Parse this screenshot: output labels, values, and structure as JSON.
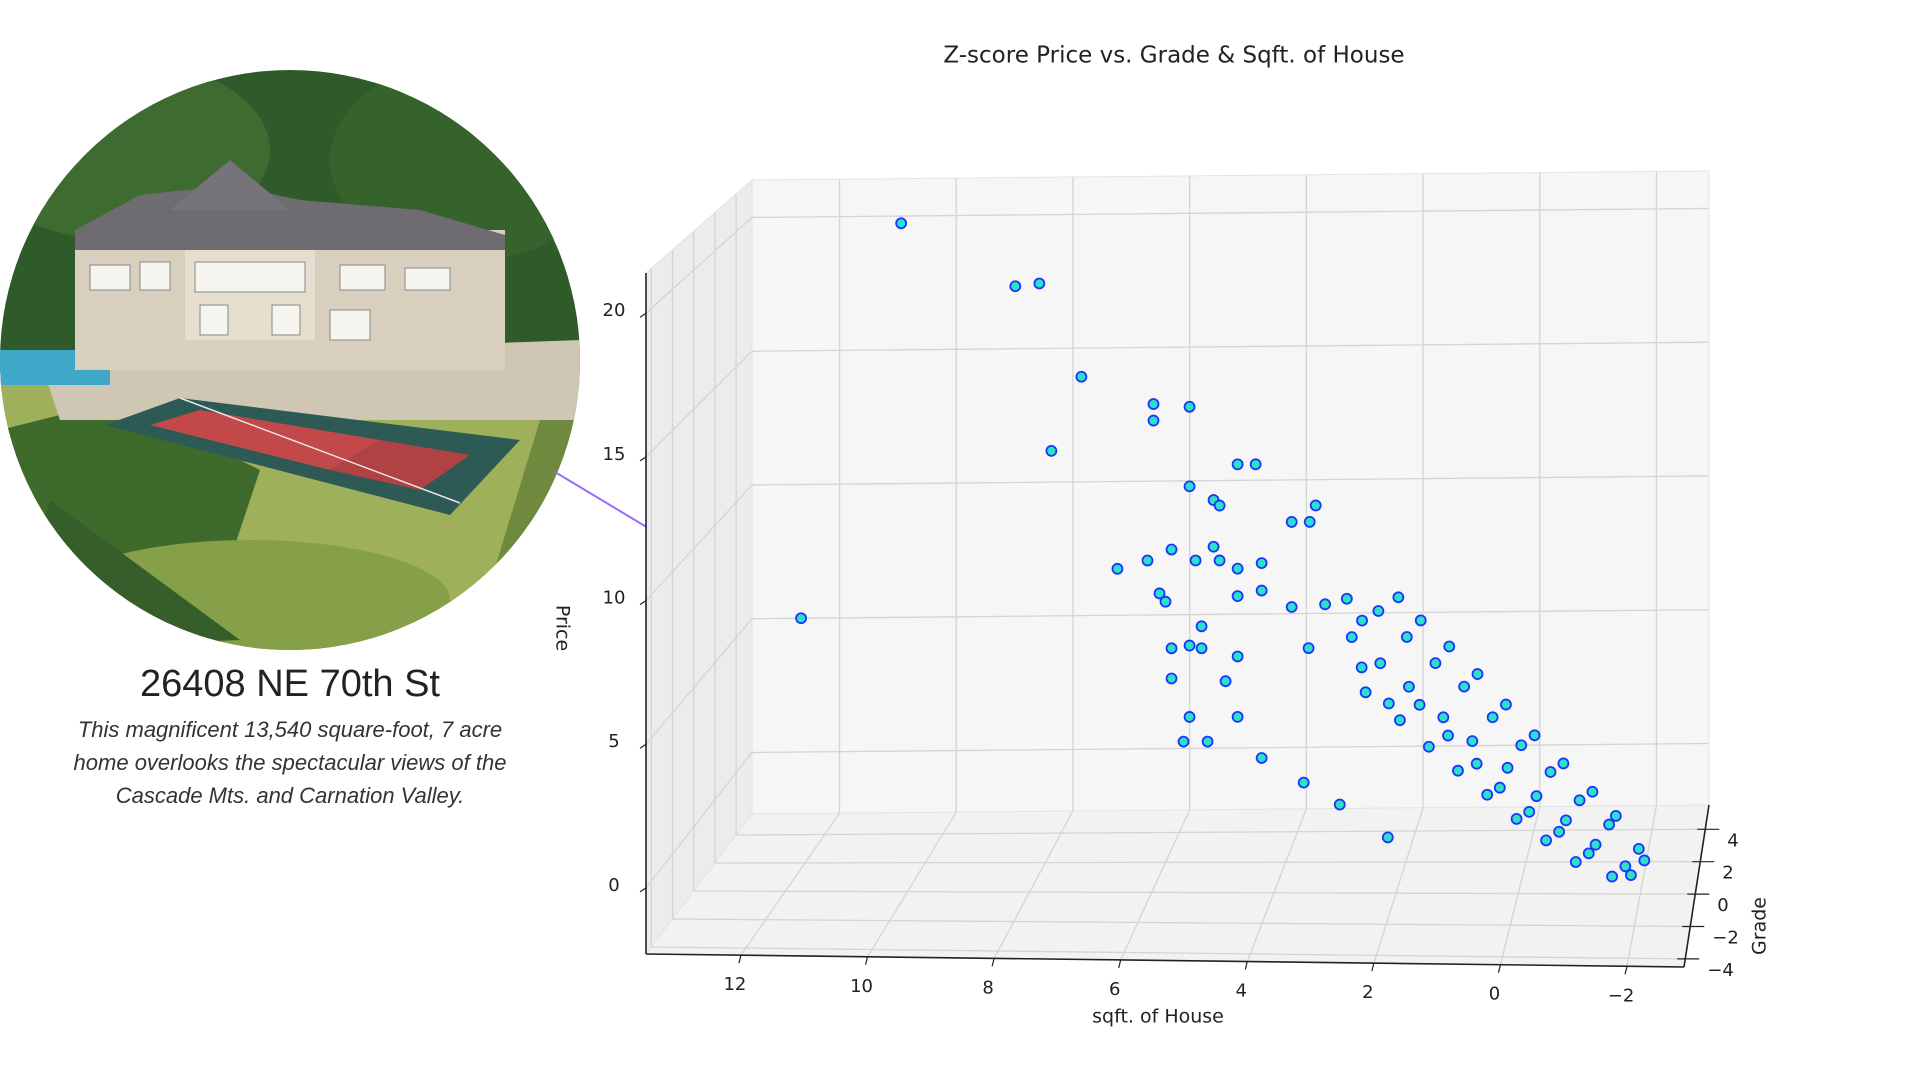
{
  "listing": {
    "address": "26408 NE 70th St",
    "description": [
      "This magnificent 13,540 square-foot, 7 acre",
      "home overlooks the spectacular views of the",
      "Cascade Mts. and Carnation Valley."
    ]
  },
  "chart_data": {
    "type": "scatter3d",
    "title": "Z-score Price vs. Grade & Sqft. of House",
    "x_label": "sqft. of House",
    "y_label": "Grade",
    "z_label": "Price",
    "xlim": [
      13.5,
      -2.9
    ],
    "ylim": [
      -4.5,
      5.5
    ],
    "zlim": [
      -2.3,
      21.4
    ],
    "xticks": [
      12,
      10,
      8,
      6,
      4,
      2,
      0,
      {
        "value": -2,
        "label": "−2"
      }
    ],
    "yticks": [
      {
        "value": -4,
        "label": "−4"
      },
      {
        "value": -2,
        "label": "−2"
      },
      0,
      2,
      4
    ],
    "zticks": [
      0,
      5,
      10,
      15,
      20
    ],
    "color": "#2fe0c8",
    "edgecolor": "#1a35ff",
    "grid": true,
    "x": [
      10.4,
      8.5,
      8.1,
      7.4,
      6.2,
      6.2,
      5.6,
      7.9,
      4.8,
      4.5,
      5.6,
      5.2,
      5.1,
      6.8,
      6.3,
      5.9,
      6.1,
      6.0,
      5.9,
      5.9,
      5.6,
      5.4,
      5.4,
      5.2,
      5.1,
      5.5,
      4.8,
      4.4,
      4.4,
      4.8,
      5.0,
      4.8,
      5.7,
      5.3,
      5.6,
      4.4,
      4.8,
      3.9,
      3.5,
      3.6,
      3.9,
      3.7,
      3.1,
      2.3,
      12.4,
      3.4,
      3.0,
      2.8,
      3.6,
      2.9,
      2.5,
      2.7,
      2.2,
      2.4,
      2.0,
      2.6,
      1.8,
      2.2,
      1.9,
      1.5,
      2.0,
      1.3,
      1.7,
      1.3,
      1.0,
      1.5,
      0.8,
      1.2,
      0.8,
      0.5,
      1.0,
      0.3,
      0.7,
      0.2,
      0.0,
      0.5,
      -0.2,
      0.3,
      -0.3,
      -0.5,
      0.0,
      -0.7,
      -0.2,
      -0.8,
      -1.0,
      -0.5,
      -1.2,
      -0.7,
      -1.3,
      -1.5,
      -1.0,
      -1.6,
      -1.2,
      -1.8,
      -2.0,
      -1.6,
      -2.1,
      -1.9
    ],
    "y": [
      2,
      2,
      2,
      2,
      2,
      2,
      2,
      2,
      2,
      2,
      2,
      2,
      2,
      2,
      2,
      2,
      2,
      2,
      2,
      2,
      2,
      2,
      2,
      2,
      2,
      2,
      2,
      2,
      2,
      2,
      2,
      2,
      2,
      2,
      2,
      2,
      2,
      2,
      2,
      2,
      2,
      2,
      2,
      2,
      4,
      2.6,
      2.2,
      2.8,
      1.8,
      2.0,
      2.5,
      1.6,
      2.9,
      1.7,
      2.2,
      1.2,
      2.6,
      1.0,
      1.4,
      1.9,
      0.8,
      2.3,
      1.1,
      1.0,
      1.6,
      0.5,
      1.9,
      0.7,
      0.7,
      1.2,
      0.2,
      1.5,
      0.3,
      0.4,
      0.8,
      -0.1,
      1.1,
      0.0,
      0.0,
      0.5,
      -0.4,
      0.7,
      -0.3,
      -0.3,
      0.1,
      -0.7,
      0.3,
      -0.5,
      -0.6,
      -0.2,
      -1.0,
      0.0,
      -0.8,
      -0.9,
      -0.5,
      -1.2,
      -0.7,
      -1.1
    ],
    "z": [
      21.0,
      18.7,
      18.8,
      15.4,
      14.4,
      13.8,
      14.3,
      12.7,
      12.2,
      12.2,
      11.4,
      10.9,
      10.7,
      8.4,
      8.7,
      9.1,
      7.5,
      7.2,
      5.5,
      4.4,
      5.6,
      5.5,
      6.3,
      9.2,
      8.7,
      8.7,
      8.4,
      8.6,
      7.6,
      7.4,
      4.3,
      3.0,
      2.1,
      2.1,
      3.0,
      1.5,
      5.2,
      10.1,
      10.7,
      10.1,
      7.0,
      0.6,
      -0.2,
      -1.4,
      5.7,
      6.8,
      7.2,
      6.1,
      5.6,
      5.9,
      6.6,
      5.0,
      6.9,
      5.1,
      5.8,
      4.3,
      6.2,
      4.0,
      4.4,
      5.0,
      3.5,
      5.4,
      3.9,
      3.5,
      4.3,
      2.7,
      4.6,
      3.0,
      2.8,
      3.4,
      2.0,
      3.7,
      2.2,
      2.0,
      2.6,
      1.3,
      2.8,
      1.5,
      1.2,
      1.8,
      0.6,
      2.0,
      0.8,
      0.5,
      1.0,
      0.0,
      1.2,
      0.2,
      -0.2,
      0.3,
      -0.6,
      0.5,
      -0.4,
      -0.8,
      -0.4,
      -1.0,
      -0.7,
      -1.0
    ]
  }
}
